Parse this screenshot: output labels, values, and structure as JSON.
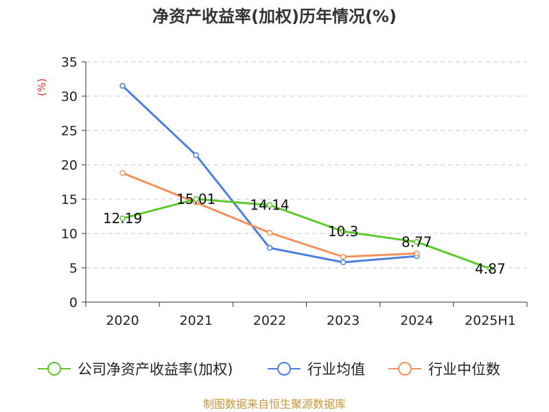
{
  "chart_data": {
    "type": "line",
    "title": "净资产收益率(加权)历年情况(%)",
    "ylabel": "(%)",
    "categories": [
      "2020",
      "2021",
      "2022",
      "2023",
      "2024",
      "2025H1"
    ],
    "ylim": [
      0,
      35
    ],
    "yticks": [
      "0",
      "5",
      "10",
      "15",
      "20",
      "25",
      "30",
      "35"
    ],
    "grid": true,
    "legend_position": "bottom",
    "series": [
      {
        "name": "公司净资产收益率(加权)",
        "color": "#5cc82a",
        "values": [
          12.19,
          15.01,
          14.14,
          10.3,
          8.77,
          4.87
        ],
        "labels": [
          "12.19",
          "15.01",
          "14.14",
          "10.3",
          "8.77",
          "4.87"
        ]
      },
      {
        "name": "行业均值",
        "color": "#4a7fe0",
        "values": [
          31.5,
          21.4,
          7.9,
          5.8,
          6.7,
          null
        ]
      },
      {
        "name": "行业中位数",
        "color": "#f5905a",
        "values": [
          18.8,
          14.5,
          10.1,
          6.6,
          7.1,
          null
        ]
      }
    ]
  },
  "footer": {
    "source": "制图数据来自恒生聚源数据库"
  }
}
